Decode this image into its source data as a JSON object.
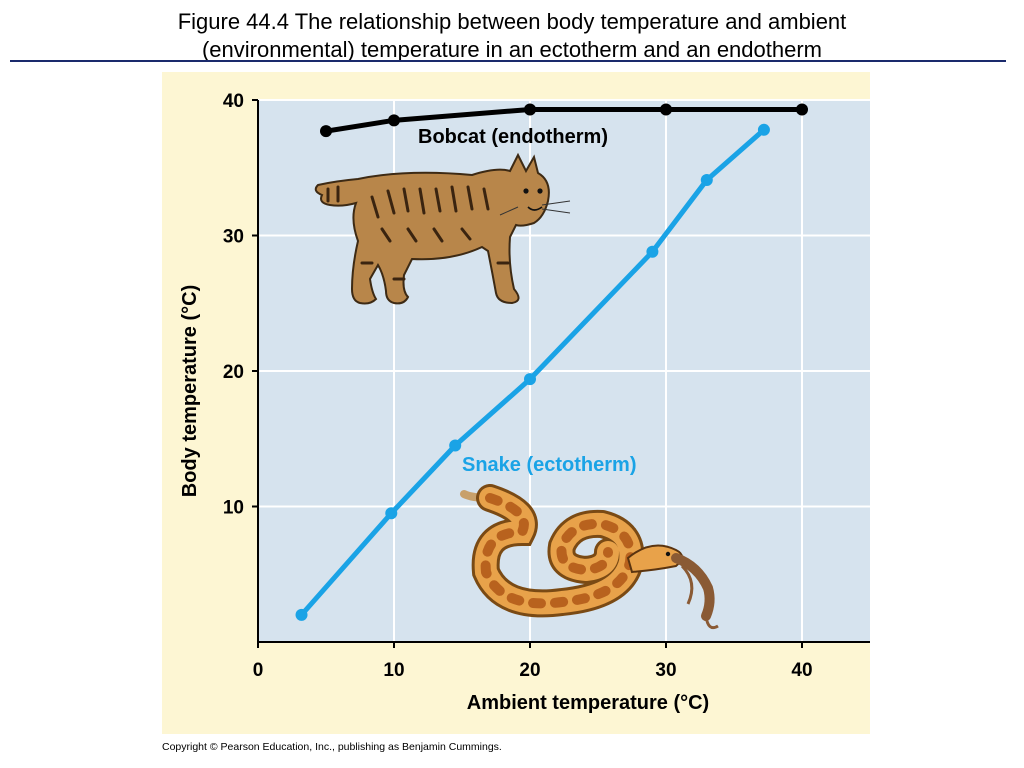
{
  "slide": {
    "title": "Figure 44.4  The relationship between body temperature and ambient\n(environmental) temperature in an ectotherm and an endotherm",
    "copyright": "Copyright © Pearson Education, Inc., publishing as Benjamin Cummings."
  },
  "chart_data": {
    "type": "line",
    "xlabel": "Ambient temperature (°C)",
    "ylabel": "Body temperature (°C)",
    "xlim": [
      0,
      45
    ],
    "ylim": [
      0,
      40
    ],
    "x_ticks": [
      0,
      10,
      20,
      30,
      40
    ],
    "y_ticks": [
      10,
      20,
      30,
      40
    ],
    "grid": true,
    "plot_background": "#d6e3ee",
    "panel_background": "#fdf6d3",
    "series": [
      {
        "name": "Bobcat (endotherm)",
        "color": "#000000",
        "icon": "bobcat-illustration",
        "points": [
          [
            5,
            37.7
          ],
          [
            10,
            38.5
          ],
          [
            20,
            39.3
          ],
          [
            30,
            39.3
          ],
          [
            40,
            39.3
          ]
        ]
      },
      {
        "name": "Snake (ectotherm)",
        "color": "#1aa3e6",
        "icon": "snake-illustration",
        "points": [
          [
            3.2,
            2
          ],
          [
            9.8,
            9.5
          ],
          [
            14.5,
            14.5
          ],
          [
            20,
            19.4
          ],
          [
            29,
            28.8
          ],
          [
            33,
            34.1
          ],
          [
            37.2,
            37.8
          ]
        ]
      }
    ]
  }
}
